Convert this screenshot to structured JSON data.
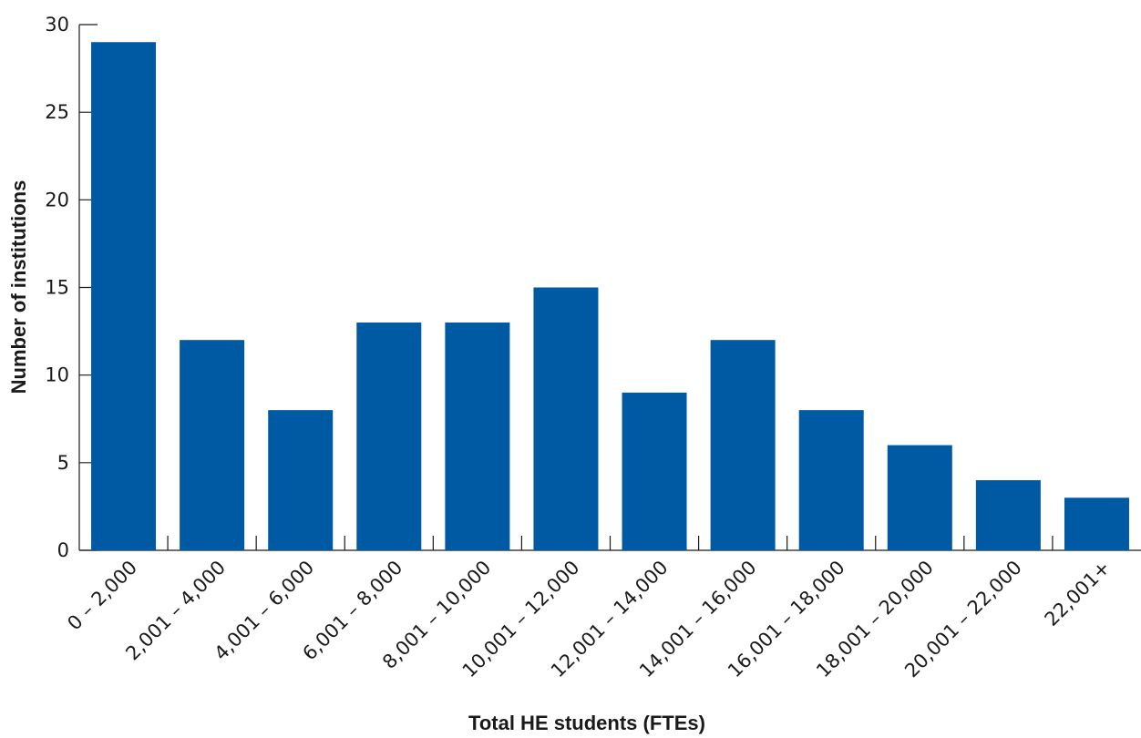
{
  "chart_data": {
    "type": "bar",
    "title": "",
    "xlabel": "Total HE students (FTEs)",
    "ylabel": "Number of institutions",
    "categories": [
      "0 – 2,000",
      "2,001 – 4,000",
      "4,001 – 6,000",
      "6,001 – 8,000",
      "8,001 – 10,000",
      "10,001 – 12,000",
      "12,001 – 14,000",
      "14,001 – 16,000",
      "16,001 – 18,000",
      "18,001 – 20,000",
      "20,001 – 22,000",
      "22,001+"
    ],
    "values": [
      29,
      12,
      8,
      13,
      13,
      15,
      9,
      12,
      8,
      6,
      4,
      3
    ],
    "ylim": [
      0,
      30
    ],
    "yticks": [
      "0",
      "5",
      "10",
      "15",
      "20",
      "25",
      "30"
    ],
    "bar_color": "#005aa3",
    "grid": false,
    "legend": "none"
  }
}
